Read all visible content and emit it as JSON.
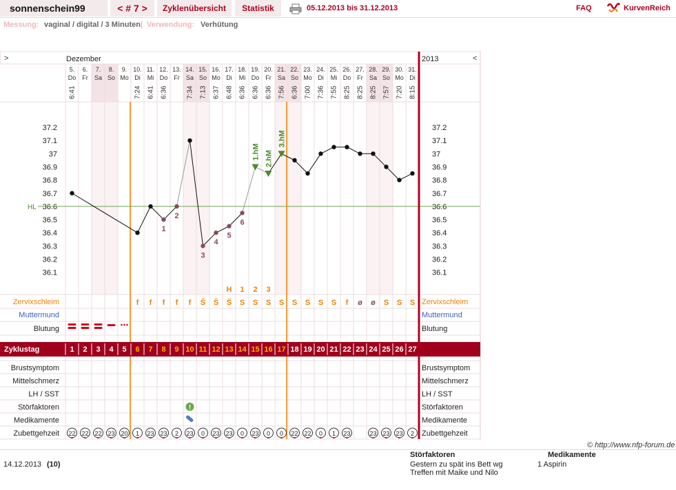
{
  "header": {
    "user": "sonnenschein99",
    "cycle_nav": "< # 7 >",
    "tabs": [
      "Zyklenübersicht",
      "Statistik"
    ],
    "date_range": "05.12.2013 bis 31.12.2013",
    "faq": "FAQ",
    "logo": "KurvenReich"
  },
  "meta": {
    "measurement_label": "Messung:",
    "measurement_value": "vaginal / digital / 3 Minuten",
    "separator": "|",
    "usage_label": "Verwendung:",
    "usage_value": "Verhütung"
  },
  "chart": {
    "nav_left": ">",
    "nav_right": "<",
    "month": "Dezember",
    "year": "2013",
    "hl_label": "HL",
    "hl_value": 36.6,
    "y_ticks": [
      "37.2",
      "37.1",
      "37",
      "36.9",
      "36.8",
      "36.7",
      "36.6",
      "36.5",
      "36.4",
      "36.3",
      "36.2",
      "36.1"
    ],
    "days": [
      {
        "d": "5.",
        "wd": "Do",
        "t": "6:41",
        "temp": 36.7,
        "zt": "22",
        "we": false
      },
      {
        "d": "6.",
        "wd": "Fr",
        "t": "",
        "temp": null,
        "zt": "22",
        "we": false
      },
      {
        "d": "7.",
        "wd": "Sa",
        "t": "",
        "temp": null,
        "zt": "22",
        "we": true
      },
      {
        "d": "8.",
        "wd": "So",
        "t": "",
        "temp": null,
        "zt": "23",
        "we": true
      },
      {
        "d": "9.",
        "wd": "Mo",
        "t": "",
        "temp": null,
        "zt": "20",
        "we": false
      },
      {
        "d": "10.",
        "wd": "Di",
        "t": "7:24",
        "temp": 36.4,
        "zt": "1",
        "we": false
      },
      {
        "d": "11.",
        "wd": "Mi",
        "t": "6:41",
        "temp": 36.6,
        "zt": "23",
        "we": false
      },
      {
        "d": "12.",
        "wd": "Do",
        "t": "6:36",
        "temp": 36.5,
        "zt": "23",
        "we": false
      },
      {
        "d": "13.",
        "wd": "Fr",
        "t": "",
        "temp": 36.6,
        "zt": "2",
        "we": false
      },
      {
        "d": "14.",
        "wd": "Sa",
        "t": "7:34",
        "temp": 37.1,
        "zt": "23",
        "we": true
      },
      {
        "d": "15.",
        "wd": "So",
        "t": "7:13",
        "temp": 36.3,
        "zt": "0",
        "we": true
      },
      {
        "d": "16.",
        "wd": "Mo",
        "t": "6:37",
        "temp": 36.4,
        "zt": "23",
        "we": false
      },
      {
        "d": "17.",
        "wd": "Di",
        "t": "6:48",
        "temp": 36.45,
        "zt": "23",
        "we": false
      },
      {
        "d": "18.",
        "wd": "Mi",
        "t": "6:36",
        "temp": 36.55,
        "zt": "0",
        "we": false
      },
      {
        "d": "19.",
        "wd": "Do",
        "t": "6:36",
        "temp": 36.9,
        "zt": "23",
        "we": false
      },
      {
        "d": "20.",
        "wd": "Fr",
        "t": "6:36",
        "temp": 36.85,
        "zt": "0",
        "we": false
      },
      {
        "d": "21.",
        "wd": "Sa",
        "t": "7:56",
        "temp": 37.0,
        "zt": "0",
        "we": true
      },
      {
        "d": "22.",
        "wd": "So",
        "t": "6:36",
        "temp": 36.95,
        "zt": "22",
        "we": true
      },
      {
        "d": "23.",
        "wd": "Mo",
        "t": "7:00",
        "temp": 36.85,
        "zt": "22",
        "we": false
      },
      {
        "d": "24.",
        "wd": "Di",
        "t": "7:36",
        "temp": 37.0,
        "zt": "0",
        "we": false
      },
      {
        "d": "25.",
        "wd": "Mi",
        "t": "7:55",
        "temp": 37.05,
        "zt": "1",
        "we": false
      },
      {
        "d": "26.",
        "wd": "Do",
        "t": "8:25",
        "temp": 37.05,
        "zt": "23",
        "we": false
      },
      {
        "d": "27.",
        "wd": "Fr",
        "t": "8:25",
        "temp": 37.0,
        "zt": "",
        "we": false
      },
      {
        "d": "28.",
        "wd": "Sa",
        "t": "8:25",
        "temp": 37.0,
        "zt": "23",
        "we": true
      },
      {
        "d": "29.",
        "wd": "So",
        "t": "7:57",
        "temp": 36.9,
        "zt": "23",
        "we": true
      },
      {
        "d": "30.",
        "wd": "Mo",
        "t": "7:20",
        "temp": 36.8,
        "zt": "23",
        "we": false
      },
      {
        "d": "31.",
        "wd": "Di",
        "t": "8:15",
        "temp": 36.85,
        "zt": "2",
        "we": false
      }
    ],
    "point_labels": [
      {
        "day": 7,
        "text": "1"
      },
      {
        "day": 8,
        "text": "2"
      },
      {
        "day": 10,
        "text": "3"
      },
      {
        "day": 11,
        "text": "4"
      },
      {
        "day": 12,
        "text": "5"
      },
      {
        "day": 13,
        "text": "6"
      }
    ],
    "hm_labels": [
      {
        "day": 14,
        "text": "1.hM"
      },
      {
        "day": 15,
        "text": "2.hM"
      },
      {
        "day": 16,
        "text": "3.hM"
      }
    ],
    "peak_labels": [
      {
        "day": 12,
        "text": "H"
      },
      {
        "day": 13,
        "text": "1"
      },
      {
        "day": 14,
        "text": "2"
      },
      {
        "day": 15,
        "text": "3"
      }
    ],
    "cervical_mucus": [
      "",
      "",
      "",
      "",
      "",
      "f",
      "f",
      "f",
      "f",
      "f",
      "S̈",
      "S̈",
      "S̈",
      "S",
      "S",
      "S",
      "S",
      "S",
      "S",
      "S",
      "S",
      "f",
      "ø",
      "ø",
      "S",
      "S",
      "S"
    ],
    "bleeding": [
      "heavy",
      "heavy",
      "heavy",
      "medium",
      "light",
      "",
      "",
      "",
      "",
      "",
      "",
      "",
      "",
      "",
      "",
      "",
      "",
      "",
      "",
      "",
      "",
      "",
      "",
      "",
      "",
      "",
      ""
    ],
    "cycle_days": [
      "1",
      "2",
      "3",
      "4",
      "5",
      "6",
      "7",
      "8",
      "9",
      "10",
      "11",
      "12",
      "13",
      "14",
      "15",
      "16",
      "17",
      "18",
      "19",
      "20",
      "21",
      "22",
      "23",
      "24",
      "25",
      "26",
      "27"
    ],
    "row_labels": {
      "cervix_mucus": "Zervixschleim",
      "cervix": "Muttermund",
      "bleeding": "Blutung",
      "cycle_day": "Zyklustag",
      "breast": "Brustsymptom",
      "midpain": "Mittelschmerz",
      "lh": "LH / SST",
      "disturb": "Störfaktoren",
      "meds": "Medikamente",
      "bedtime": "Zubettgehzeit"
    },
    "disturbance_day": 9,
    "medication_day": 9
  },
  "copyright": "© http://www.nfp-forum.de",
  "footer": {
    "date": "14.12.2013",
    "day_num": "(10)",
    "disturb_header": "Störfaktoren",
    "disturb_text": "Gestern zu spät ins Bett wg Treffen mit Maike und Nilo",
    "meds_header": "Medikamente",
    "meds_text": "1 Aspirin"
  },
  "colors": {
    "accent": "#b00020",
    "orange": "#f08000",
    "green": "#4a8a2a",
    "cervix_blue": "#4060c0"
  }
}
